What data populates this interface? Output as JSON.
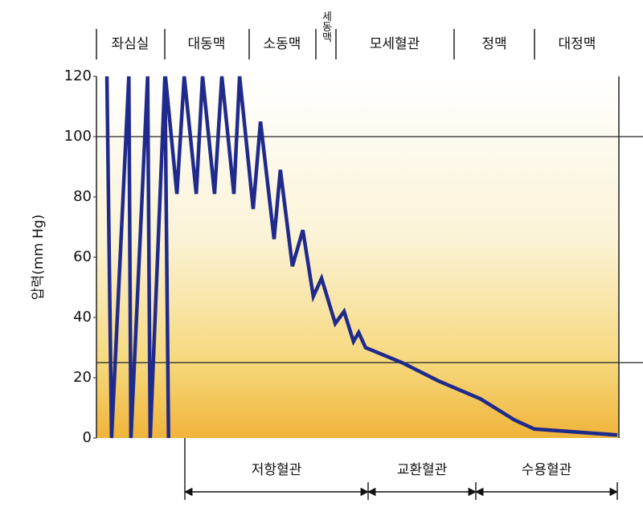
{
  "chart_data": {
    "type": "line",
    "y_label": "압력(mm Hg)",
    "sections": [
      "좌심실",
      "대동맥",
      "소동맥",
      "세동맥",
      "모세혈관",
      "정맥",
      "대정맥"
    ],
    "groups": [
      "저항혈관",
      "교환혈관",
      "수용혈관"
    ],
    "xlim": [
      0,
      100
    ],
    "ylim": [
      0,
      120
    ],
    "yticks": [
      0,
      20,
      40,
      60,
      80,
      100,
      120
    ],
    "hlines": [
      100,
      25
    ],
    "x": [
      2,
      2.9,
      6.2,
      6.6,
      9.8,
      10.3,
      13.1,
      13.8,
      null,
      13.2,
      15.4,
      16.8,
      19.1,
      20.3,
      22.6,
      24,
      26.3,
      27.4,
      30,
      31.4,
      34,
      35.2,
      37.5,
      39.5,
      41.5,
      43.1,
      45.7,
      47.4,
      49.2,
      50.2,
      51.5,
      58.5,
      65.4,
      73.5,
      80,
      83.8,
      99.7
    ],
    "series": [
      {
        "color": "#1f2a8c",
        "values": [
          120,
          0,
          120,
          0,
          120,
          0,
          120,
          0,
          null,
          120,
          81,
          120,
          81,
          120,
          81,
          120,
          81,
          120,
          76,
          105,
          66,
          89,
          57,
          69,
          47,
          53,
          38,
          42,
          32,
          35,
          30,
          25,
          19,
          13,
          6,
          3,
          1
        ]
      }
    ]
  }
}
